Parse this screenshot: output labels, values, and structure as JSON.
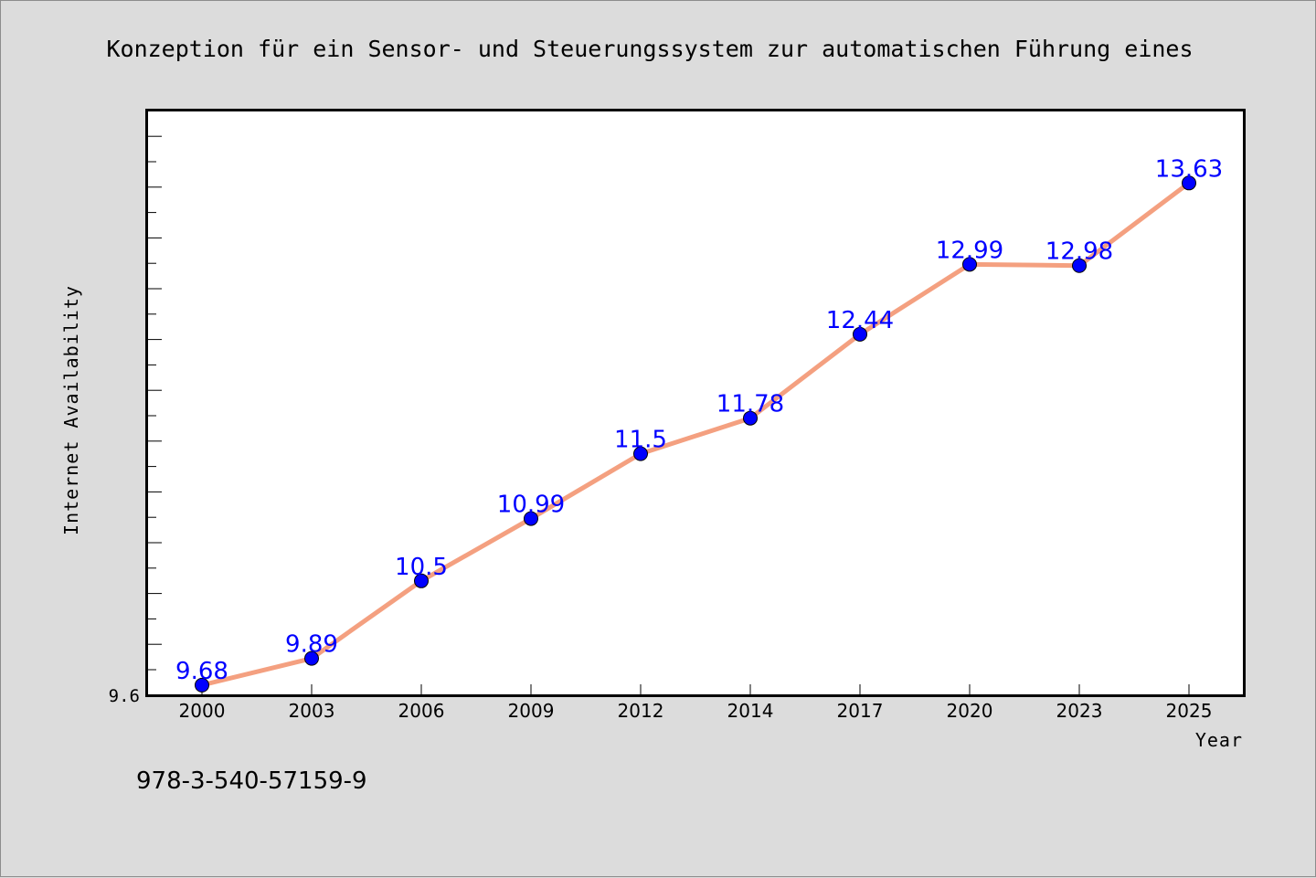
{
  "chart_data": {
    "type": "line",
    "title": "Konzeption für ein Sensor- und Steuerungssystem zur automatischen Führung eines",
    "xlabel": "Year",
    "ylabel": "Internet Availability",
    "categories": [
      "2000",
      "2003",
      "2006",
      "2009",
      "2012",
      "2014",
      "2017",
      "2020",
      "2023",
      "2025"
    ],
    "series": [
      {
        "values": [
          9.68,
          9.89,
          10.5,
          10.99,
          11.5,
          11.78,
          12.44,
          12.99,
          12.98,
          13.63
        ],
        "data_labels": [
          "9.68",
          "9.89",
          "10.5",
          "10.99",
          "11.5",
          "11.78",
          "12.44",
          "12.99",
          "12.98",
          "13.63"
        ],
        "line_color": "#f4a080",
        "marker_color": "#0000ff"
      }
    ],
    "ylim": [
      9.6,
      14.2
    ],
    "y_tick_label": "9.6",
    "grid": false,
    "legend": "none",
    "background": "#ffffff"
  },
  "footer": {
    "text": "978-3-540-57159-9"
  }
}
